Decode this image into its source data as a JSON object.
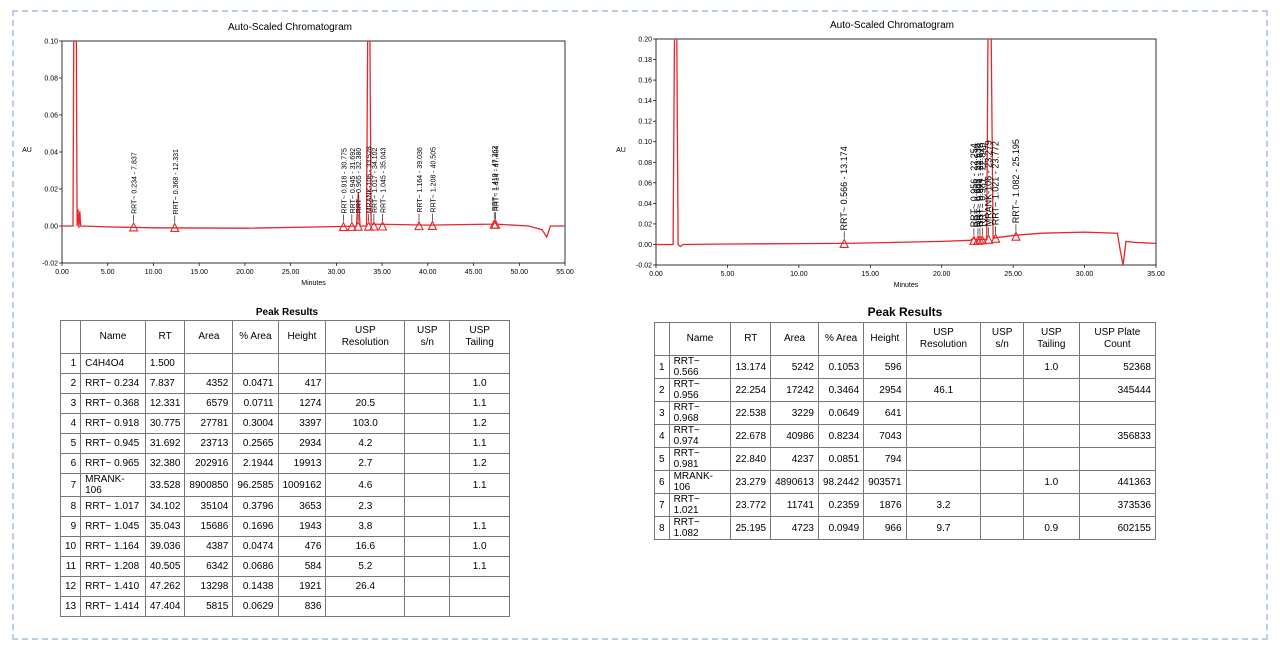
{
  "chart_data": [
    {
      "type": "line",
      "title": "Auto-Scaled Chromatogram",
      "xlabel": "Minutes",
      "ylabel": "AU",
      "xlim": [
        0,
        55
      ],
      "ylim": [
        -0.02,
        0.1
      ],
      "xticks": [
        "0.00",
        "5.00",
        "10.00",
        "15.00",
        "20.00",
        "25.00",
        "30.00",
        "35.00",
        "40.00",
        "45.00",
        "50.00",
        "55.00"
      ],
      "yticks": [
        "-0.02",
        "0.00",
        "0.02",
        "0.04",
        "0.06",
        "0.08",
        "0.10"
      ],
      "color": "#e8262a",
      "baseline": [
        {
          "x": 0,
          "y": 0.0
        },
        {
          "x": 1.2,
          "y": 0.0
        },
        {
          "x": 1.3,
          "y": 0.12
        },
        {
          "x": 1.55,
          "y": 0.12
        },
        {
          "x": 1.65,
          "y": 0.0
        },
        {
          "x": 1.75,
          "y": 0.009
        },
        {
          "x": 1.85,
          "y": -0.001
        },
        {
          "x": 1.95,
          "y": 0.008
        },
        {
          "x": 2.05,
          "y": 0.0
        },
        {
          "x": 5,
          "y": -0.0005
        },
        {
          "x": 10,
          "y": -0.001
        },
        {
          "x": 20,
          "y": -0.0012
        },
        {
          "x": 30,
          "y": -0.0003
        },
        {
          "x": 32.2,
          "y": 0.0
        },
        {
          "x": 32.4,
          "y": 0.018
        },
        {
          "x": 32.6,
          "y": 0.0
        },
        {
          "x": 33.3,
          "y": 0.0
        },
        {
          "x": 33.45,
          "y": 0.12
        },
        {
          "x": 33.65,
          "y": 0.12
        },
        {
          "x": 33.8,
          "y": 0.001
        },
        {
          "x": 40,
          "y": 0.0005
        },
        {
          "x": 47.1,
          "y": 0.001
        },
        {
          "x": 47.3,
          "y": 0.002
        },
        {
          "x": 47.5,
          "y": 0.001
        },
        {
          "x": 51,
          "y": 0.0
        },
        {
          "x": 52.5,
          "y": -0.002
        },
        {
          "x": 53.0,
          "y": -0.006
        },
        {
          "x": 53.4,
          "y": 0.0
        },
        {
          "x": 55,
          "y": 0.0
        }
      ],
      "peaks": [
        {
          "label": "RRT~ 0.234 - 7.837",
          "x": 7.837,
          "y": -0.0005
        },
        {
          "label": "RRT~ 0.368 - 12.331",
          "x": 12.331,
          "y": -0.0008
        },
        {
          "label": "RRT~ 0.918 - 30.775",
          "x": 30.775,
          "y": -0.0003
        },
        {
          "label": "RRT~ 0.945 - 31.692",
          "x": 31.692,
          "y": -0.0002
        },
        {
          "label": "RRT~ 0.965 - 32.380",
          "x": 32.38,
          "y": -0.0001
        },
        {
          "label": "MRANK-106 - 33.528",
          "x": 33.528,
          "y": -0.0001
        },
        {
          "label": "RRT~ 1.017 - 34.102",
          "x": 34.102,
          "y": 0.0
        },
        {
          "label": "RRT~ 1.045 - 35.043",
          "x": 35.043,
          "y": 0.0
        },
        {
          "label": "RRT~ 1.164 - 39.036",
          "x": 39.036,
          "y": 0.0002
        },
        {
          "label": "RRT~ 1.208 - 40.505",
          "x": 40.505,
          "y": 0.0003
        },
        {
          "label": "RRT~ 1.410 - 47.262",
          "x": 47.262,
          "y": 0.001
        },
        {
          "label": "RRT~ 1.414 - 47.404",
          "x": 47.404,
          "y": 0.001
        }
      ]
    },
    {
      "type": "line",
      "title": "Auto-Scaled Chromatogram",
      "xlabel": "Minutes",
      "ylabel": "AU",
      "xlim": [
        0,
        35
      ],
      "ylim": [
        -0.02,
        0.2
      ],
      "xticks": [
        "0.00",
        "5.00",
        "10.00",
        "15.00",
        "20.00",
        "25.00",
        "30.00",
        "35.00"
      ],
      "yticks": [
        "-0.02",
        "0.00",
        "0.02",
        "0.04",
        "0.06",
        "0.08",
        "0.10",
        "0.12",
        "0.14",
        "0.16",
        "0.18",
        "0.20"
      ],
      "color": "#e8262a",
      "baseline": [
        {
          "x": 0,
          "y": 0.0
        },
        {
          "x": 1.2,
          "y": 0.0
        },
        {
          "x": 1.3,
          "y": 0.22
        },
        {
          "x": 1.45,
          "y": 0.22
        },
        {
          "x": 1.55,
          "y": 0.0
        },
        {
          "x": 1.7,
          "y": -0.002
        },
        {
          "x": 1.9,
          "y": 0.0
        },
        {
          "x": 5,
          "y": 0.0004
        },
        {
          "x": 10,
          "y": 0.0008
        },
        {
          "x": 13.0,
          "y": 0.001
        },
        {
          "x": 15,
          "y": 0.0015
        },
        {
          "x": 20,
          "y": 0.003
        },
        {
          "x": 22.0,
          "y": 0.004
        },
        {
          "x": 22.25,
          "y": 0.006
        },
        {
          "x": 22.4,
          "y": 0.004
        },
        {
          "x": 22.6,
          "y": 0.005
        },
        {
          "x": 22.85,
          "y": 0.005
        },
        {
          "x": 23.15,
          "y": 0.005
        },
        {
          "x": 23.25,
          "y": 0.22
        },
        {
          "x": 23.45,
          "y": 0.22
        },
        {
          "x": 23.6,
          "y": 0.006
        },
        {
          "x": 24.0,
          "y": 0.007
        },
        {
          "x": 25.2,
          "y": 0.009
        },
        {
          "x": 27,
          "y": 0.011
        },
        {
          "x": 30,
          "y": 0.012
        },
        {
          "x": 32.3,
          "y": 0.011
        },
        {
          "x": 32.5,
          "y": -0.006
        },
        {
          "x": 32.7,
          "y": -0.02
        },
        {
          "x": 32.9,
          "y": 0.003
        },
        {
          "x": 33.5,
          "y": 0.002
        },
        {
          "x": 35,
          "y": 0.001
        }
      ],
      "peaks": [
        {
          "label": "RRT~ 0.566 - 13.174",
          "x": 13.174,
          "y": 0.001
        },
        {
          "label": "RRT~ 0.956 - 22.254",
          "x": 22.254,
          "y": 0.004
        },
        {
          "label": "RRT~ 0.968 - 22.538",
          "x": 22.538,
          "y": 0.004
        },
        {
          "label": "RRT~ 0.974 - 22.678",
          "x": 22.678,
          "y": 0.0045
        },
        {
          "label": "RRT~ 0.981 - 22.840",
          "x": 22.84,
          "y": 0.0045
        },
        {
          "label": "MRANK-106 - 23.279",
          "x": 23.279,
          "y": 0.005
        },
        {
          "label": "RRT~ 1.021 - 23.772",
          "x": 23.772,
          "y": 0.006
        },
        {
          "label": "RRT~ 1.082 - 25.195",
          "x": 25.195,
          "y": 0.008
        }
      ]
    }
  ],
  "table1": {
    "title": "Peak Results",
    "headers": [
      "",
      "Name",
      "RT",
      "Area",
      "% Area",
      "Height",
      "USP Resolution",
      "USP s/n",
      "USP Tailing"
    ],
    "rows": [
      [
        "1",
        "C4H4O4",
        "1.500",
        "",
        "",
        "",
        "",
        "",
        ""
      ],
      [
        "2",
        "RRT~ 0.234",
        "7.837",
        "4352",
        "0.0471",
        "417",
        "",
        "",
        "1.0"
      ],
      [
        "3",
        "RRT~ 0.368",
        "12.331",
        "6579",
        "0.0711",
        "1274",
        "20.5",
        "",
        "1.1"
      ],
      [
        "4",
        "RRT~ 0.918",
        "30.775",
        "27781",
        "0.3004",
        "3397",
        "103.0",
        "",
        "1.2"
      ],
      [
        "5",
        "RRT~ 0.945",
        "31.692",
        "23713",
        "0.2565",
        "2934",
        "4.2",
        "",
        "1.1"
      ],
      [
        "6",
        "RRT~ 0.965",
        "32.380",
        "202916",
        "2.1944",
        "19913",
        "2.7",
        "",
        "1.2"
      ],
      [
        "7",
        "MRANK-106",
        "33.528",
        "8900850",
        "96.2585",
        "1009162",
        "4.6",
        "",
        "1.1"
      ],
      [
        "8",
        "RRT~ 1.017",
        "34.102",
        "35104",
        "0.3796",
        "3653",
        "2.3",
        "",
        ""
      ],
      [
        "9",
        "RRT~ 1.045",
        "35.043",
        "15686",
        "0.1696",
        "1943",
        "3.8",
        "",
        "1.1"
      ],
      [
        "10",
        "RRT~ 1.164",
        "39.036",
        "4387",
        "0.0474",
        "476",
        "16.6",
        "",
        "1.0"
      ],
      [
        "11",
        "RRT~ 1.208",
        "40.505",
        "6342",
        "0.0686",
        "584",
        "5.2",
        "",
        "1.1"
      ],
      [
        "12",
        "RRT~ 1.410",
        "47.262",
        "13298",
        "0.1438",
        "1921",
        "26.4",
        "",
        ""
      ],
      [
        "13",
        "RRT~ 1.414",
        "47.404",
        "5815",
        "0.0629",
        "836",
        "",
        "",
        ""
      ]
    ]
  },
  "table2": {
    "title": "Peak Results",
    "headers": [
      "",
      "Name",
      "RT",
      "Area",
      "% Area",
      "Height",
      "USP Resolution",
      "USP s/n",
      "USP Tailing",
      "USP Plate Count"
    ],
    "rows": [
      [
        "1",
        "RRT~ 0.566",
        "13.174",
        "5242",
        "0.1053",
        "596",
        "",
        "",
        "1.0",
        "52368"
      ],
      [
        "2",
        "RRT~ 0.956",
        "22.254",
        "17242",
        "0.3464",
        "2954",
        "46.1",
        "",
        "",
        "345444"
      ],
      [
        "3",
        "RRT~ 0.968",
        "22.538",
        "3229",
        "0.0649",
        "641",
        "",
        "",
        "",
        ""
      ],
      [
        "4",
        "RRT~ 0.974",
        "22.678",
        "40986",
        "0.8234",
        "7043",
        "",
        "",
        "",
        "356833"
      ],
      [
        "5",
        "RRT~ 0.981",
        "22.840",
        "4237",
        "0.0851",
        "794",
        "",
        "",
        "",
        ""
      ],
      [
        "6",
        "MRANK-106",
        "23.279",
        "4890613",
        "98.2442",
        "903571",
        "",
        "",
        "1.0",
        "441363"
      ],
      [
        "7",
        "RRT~ 1.021",
        "23.772",
        "11741",
        "0.2359",
        "1876",
        "3.2",
        "",
        "",
        "373536"
      ],
      [
        "8",
        "RRT~ 1.082",
        "25.195",
        "4723",
        "0.0949",
        "966",
        "9.7",
        "",
        "0.9",
        "602155"
      ]
    ]
  }
}
